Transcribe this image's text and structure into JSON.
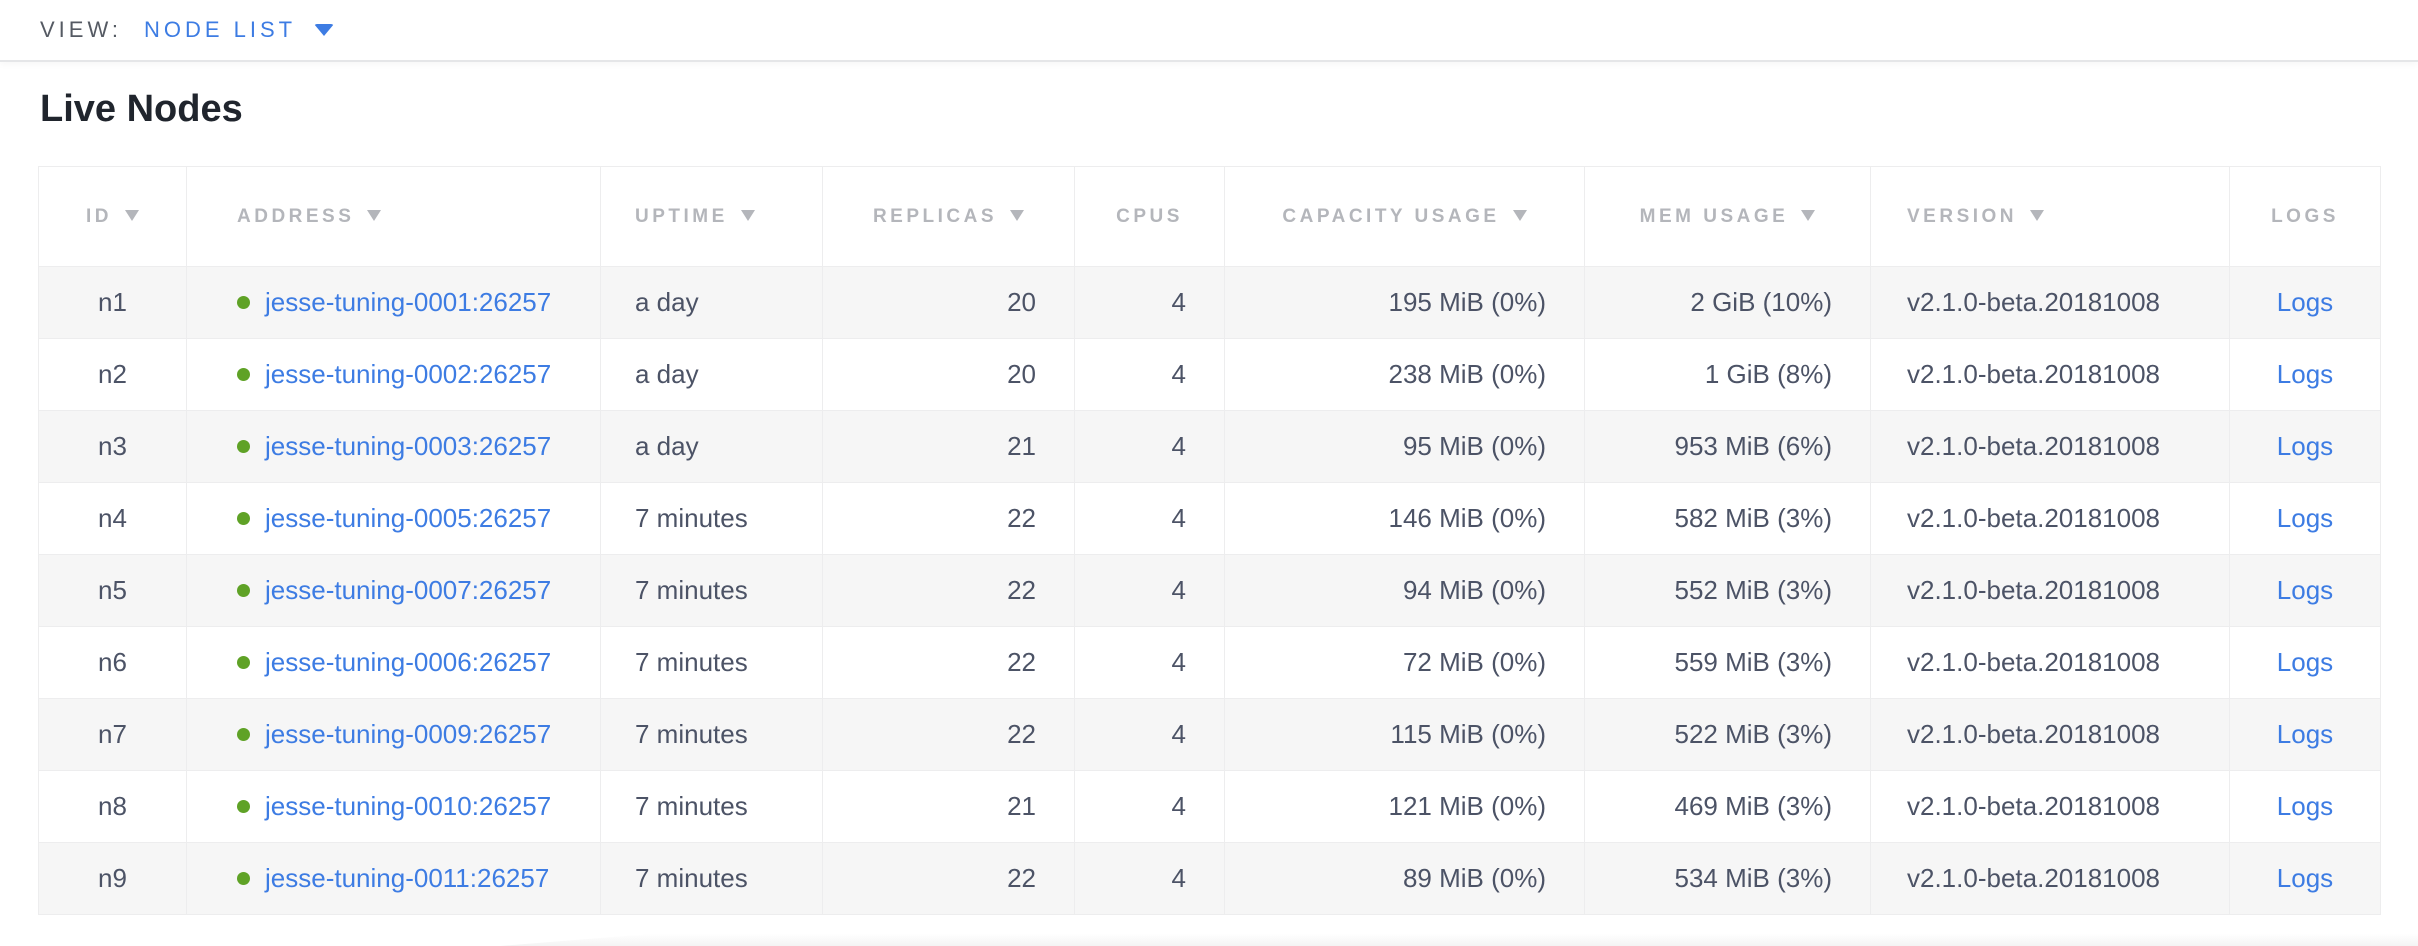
{
  "view_bar": {
    "label": "VIEW:",
    "selected": "NODE LIST"
  },
  "page": {
    "title": "Live Nodes"
  },
  "table": {
    "columns": [
      {
        "key": "id",
        "label": "ID",
        "sortable": true,
        "header_align": "center",
        "cell_align": "center"
      },
      {
        "key": "address",
        "label": "ADDRESS",
        "sortable": true,
        "header_align": "left",
        "cell_align": "left"
      },
      {
        "key": "uptime",
        "label": "UPTIME",
        "sortable": true,
        "header_align": "left",
        "cell_align": "left"
      },
      {
        "key": "replicas",
        "label": "REPLICAS",
        "sortable": true,
        "header_align": "center",
        "cell_align": "right"
      },
      {
        "key": "cpus",
        "label": "CPUS",
        "sortable": false,
        "header_align": "center",
        "cell_align": "right"
      },
      {
        "key": "capacity",
        "label": "CAPACITY USAGE",
        "sortable": true,
        "header_align": "center",
        "cell_align": "right"
      },
      {
        "key": "mem",
        "label": "MEM USAGE",
        "sortable": true,
        "header_align": "center",
        "cell_align": "right"
      },
      {
        "key": "version",
        "label": "VERSION",
        "sortable": true,
        "header_align": "left",
        "cell_align": "left"
      },
      {
        "key": "logs",
        "label": "LOGS",
        "sortable": false,
        "header_align": "center",
        "cell_align": "center"
      }
    ],
    "rows": [
      {
        "id": "n1",
        "address": "jesse-tuning-0001:26257",
        "uptime": "a day",
        "replicas": "20",
        "cpus": "4",
        "capacity": "195 MiB (0%)",
        "mem": "2 GiB (10%)",
        "version": "v2.1.0-beta.20181008",
        "logs": "Logs"
      },
      {
        "id": "n2",
        "address": "jesse-tuning-0002:26257",
        "uptime": "a day",
        "replicas": "20",
        "cpus": "4",
        "capacity": "238 MiB (0%)",
        "mem": "1 GiB (8%)",
        "version": "v2.1.0-beta.20181008",
        "logs": "Logs"
      },
      {
        "id": "n3",
        "address": "jesse-tuning-0003:26257",
        "uptime": "a day",
        "replicas": "21",
        "cpus": "4",
        "capacity": "95 MiB (0%)",
        "mem": "953 MiB (6%)",
        "version": "v2.1.0-beta.20181008",
        "logs": "Logs"
      },
      {
        "id": "n4",
        "address": "jesse-tuning-0005:26257",
        "uptime": "7 minutes",
        "replicas": "22",
        "cpus": "4",
        "capacity": "146 MiB (0%)",
        "mem": "582 MiB (3%)",
        "version": "v2.1.0-beta.20181008",
        "logs": "Logs"
      },
      {
        "id": "n5",
        "address": "jesse-tuning-0007:26257",
        "uptime": "7 minutes",
        "replicas": "22",
        "cpus": "4",
        "capacity": "94 MiB (0%)",
        "mem": "552 MiB (3%)",
        "version": "v2.1.0-beta.20181008",
        "logs": "Logs"
      },
      {
        "id": "n6",
        "address": "jesse-tuning-0006:26257",
        "uptime": "7 minutes",
        "replicas": "22",
        "cpus": "4",
        "capacity": "72 MiB (0%)",
        "mem": "559 MiB (3%)",
        "version": "v2.1.0-beta.20181008",
        "logs": "Logs"
      },
      {
        "id": "n7",
        "address": "jesse-tuning-0009:26257",
        "uptime": "7 minutes",
        "replicas": "22",
        "cpus": "4",
        "capacity": "115 MiB (0%)",
        "mem": "522 MiB (3%)",
        "version": "v2.1.0-beta.20181008",
        "logs": "Logs"
      },
      {
        "id": "n8",
        "address": "jesse-tuning-0010:26257",
        "uptime": "7 minutes",
        "replicas": "21",
        "cpus": "4",
        "capacity": "121 MiB (0%)",
        "mem": "469 MiB (3%)",
        "version": "v2.1.0-beta.20181008",
        "logs": "Logs"
      },
      {
        "id": "n9",
        "address": "jesse-tuning-0011:26257",
        "uptime": "7 minutes",
        "replicas": "22",
        "cpus": "4",
        "capacity": "89 MiB (0%)",
        "mem": "534 MiB (3%)",
        "version": "v2.1.0-beta.20181008",
        "logs": "Logs"
      }
    ]
  },
  "icons": {
    "view_caret": "chevron-down-icon",
    "sort_arrow": "sort-desc-icon",
    "node_status": "live-status-dot-icon"
  },
  "colors": {
    "link_blue": "#3d7ce3",
    "live_dot_green": "#5fa226",
    "header_gray": "#b4b6bb",
    "body_text": "#4c5366",
    "row_stripe": "#f6f6f6"
  }
}
